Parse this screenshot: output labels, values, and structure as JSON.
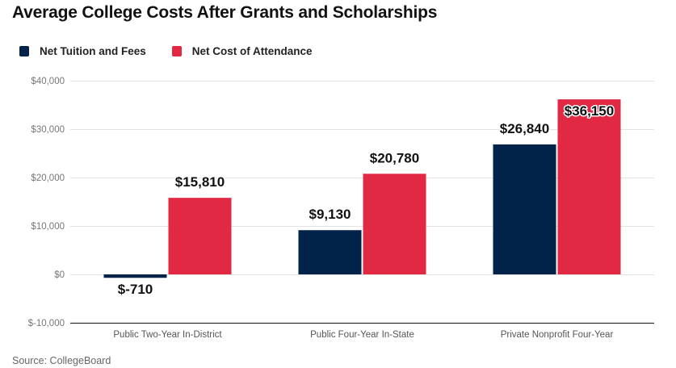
{
  "chart_data": {
    "type": "bar",
    "title": "Average College Costs After Grants and Scholarships",
    "categories": [
      "Public Two-Year In-District",
      "Public Four-Year In-State",
      "Private Nonprofit Four-Year"
    ],
    "series": [
      {
        "name": "Net Tuition and Fees",
        "color": "#012249",
        "values": [
          -710,
          9130,
          26840
        ],
        "labels": [
          "$-710",
          "$9,130",
          "$26,840"
        ]
      },
      {
        "name": "Net Cost of Attendance",
        "color": "#E12944",
        "values": [
          15810,
          20780,
          36150
        ],
        "labels": [
          "$15,810",
          "$20,780",
          "$36,150"
        ]
      }
    ],
    "xlabel": "",
    "ylabel": "",
    "ylim": [
      -10000,
      40000
    ],
    "yticks": [
      -10000,
      0,
      10000,
      20000,
      30000,
      40000
    ],
    "ytick_labels": [
      "$-10,000",
      "$0",
      "$10,000",
      "$20,000",
      "$30,000",
      "$40,000"
    ],
    "grid": true,
    "legend_position": "top-left",
    "source": "Source: CollegeBoard"
  }
}
